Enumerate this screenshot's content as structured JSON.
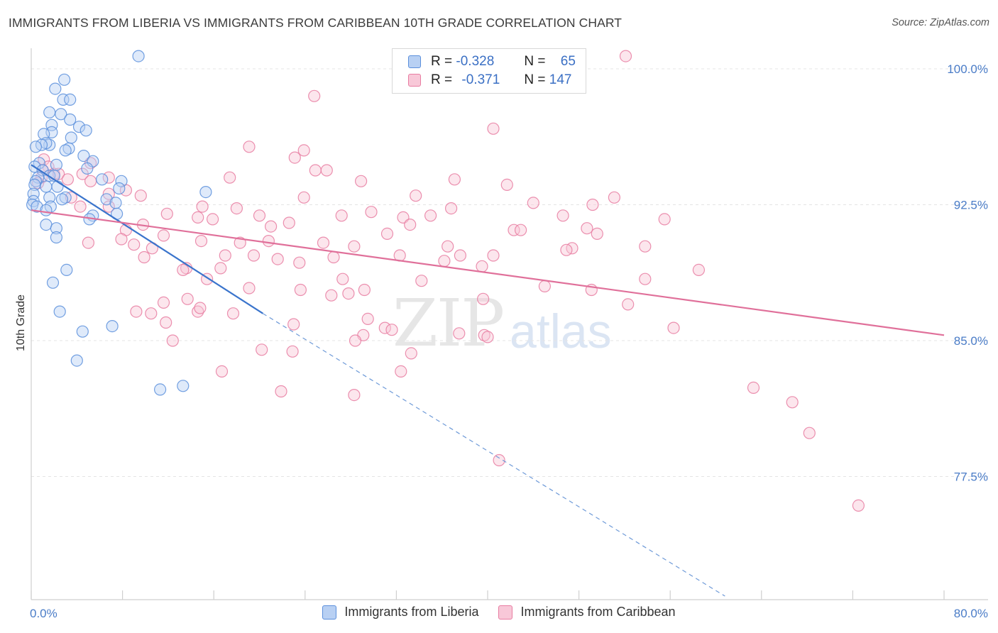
{
  "title": "IMMIGRANTS FROM LIBERIA VS IMMIGRANTS FROM CARIBBEAN 10TH GRADE CORRELATION CHART",
  "source": "Source: ZipAtlas.com",
  "watermark": {
    "zip": "ZIP",
    "atlas": "atlas"
  },
  "legend": {
    "r_label": "R =",
    "n_label": "N =",
    "rows": [
      {
        "r": "-0.328",
        "n": "65",
        "color": "#5b8fdc",
        "fill": "#b8d0f3"
      },
      {
        "r": "-0.371",
        "n": "147",
        "color": "#e87ca1",
        "fill": "#f8c8d8"
      }
    ]
  },
  "bottom_legend": [
    {
      "label": "Immigrants from Liberia",
      "color": "#5b8fdc",
      "fill": "#b8d0f3"
    },
    {
      "label": "Immigrants from Caribbean",
      "color": "#e87ca1",
      "fill": "#f8c8d8"
    }
  ],
  "chart_data": {
    "type": "scatter",
    "title": "IMMIGRANTS FROM LIBERIA VS IMMIGRANTS FROM CARIBBEAN 10TH GRADE CORRELATION CHART",
    "xlabel": "",
    "ylabel": "10th Grade",
    "xlim": [
      0,
      80
    ],
    "ylim": [
      71,
      101.5
    ],
    "x_tick_labels": [
      {
        "value": 0,
        "label": "0.0%"
      },
      {
        "value": 80,
        "label": "80.0%"
      }
    ],
    "y_tick_labels": [
      {
        "value": 100,
        "label": "100.0%"
      },
      {
        "value": 92.5,
        "label": "92.5%"
      },
      {
        "value": 85,
        "label": "85.0%"
      },
      {
        "value": 77.5,
        "label": "77.5%"
      }
    ],
    "grid": true,
    "legend_position": "top-center",
    "series": [
      {
        "name": "Immigrants from Liberia",
        "color": "#5b8fdc",
        "fill": "#b8d0f3",
        "trend": {
          "x0": 0,
          "y0": 94.7,
          "x1": 20.3,
          "y1": 86.5,
          "dashed_to_x": 60.8,
          "dashed_to_y": 70.9
        },
        "points": [
          [
            9.4,
            100.7
          ],
          [
            2.9,
            99.4
          ],
          [
            2.1,
            98.9
          ],
          [
            2.8,
            98.3
          ],
          [
            3.4,
            98.3
          ],
          [
            1.6,
            97.6
          ],
          [
            2.6,
            97.5
          ],
          [
            3.4,
            97.2
          ],
          [
            1.8,
            96.9
          ],
          [
            4.2,
            96.8
          ],
          [
            4.8,
            96.6
          ],
          [
            1.8,
            96.5
          ],
          [
            1.1,
            96.4
          ],
          [
            3.5,
            96.2
          ],
          [
            1.6,
            95.8
          ],
          [
            1.3,
            95.9
          ],
          [
            0.9,
            95.8
          ],
          [
            0.4,
            95.7
          ],
          [
            3.3,
            95.6
          ],
          [
            3.0,
            95.5
          ],
          [
            4.6,
            95.2
          ],
          [
            5.4,
            94.9
          ],
          [
            2.2,
            94.7
          ],
          [
            0.7,
            94.8
          ],
          [
            0.3,
            94.6
          ],
          [
            4.9,
            94.5
          ],
          [
            1.0,
            94.4
          ],
          [
            1.6,
            94.1
          ],
          [
            2.0,
            94.1
          ],
          [
            0.6,
            94.0
          ],
          [
            6.2,
            93.9
          ],
          [
            7.9,
            93.8
          ],
          [
            0.4,
            93.8
          ],
          [
            0.3,
            93.6
          ],
          [
            1.3,
            93.5
          ],
          [
            2.3,
            93.5
          ],
          [
            7.7,
            93.4
          ],
          [
            15.3,
            93.2
          ],
          [
            0.2,
            93.1
          ],
          [
            3.0,
            92.9
          ],
          [
            1.6,
            92.9
          ],
          [
            2.7,
            92.8
          ],
          [
            6.6,
            92.8
          ],
          [
            7.4,
            92.6
          ],
          [
            0.2,
            92.7
          ],
          [
            0.1,
            92.5
          ],
          [
            0.5,
            92.4
          ],
          [
            1.7,
            92.4
          ],
          [
            1.3,
            92.2
          ],
          [
            7.5,
            92.0
          ],
          [
            5.4,
            91.9
          ],
          [
            5.1,
            91.7
          ],
          [
            1.3,
            91.4
          ],
          [
            2.2,
            91.2
          ],
          [
            2.2,
            90.7
          ],
          [
            3.1,
            88.9
          ],
          [
            1.9,
            88.2
          ],
          [
            2.5,
            86.6
          ],
          [
            7.1,
            85.8
          ],
          [
            4.5,
            85.5
          ],
          [
            4.0,
            83.9
          ],
          [
            11.3,
            82.3
          ],
          [
            13.3,
            82.5
          ]
        ]
      },
      {
        "name": "Immigrants from Caribbean",
        "color": "#e87ca1",
        "fill": "#f8c8d8",
        "trend": {
          "x0": 0,
          "y0": 92.2,
          "x1": 80,
          "y1": 85.3
        },
        "points": [
          [
            52.1,
            100.7
          ],
          [
            24.8,
            98.5
          ],
          [
            40.5,
            96.7
          ],
          [
            19.1,
            95.7
          ],
          [
            23.9,
            95.5
          ],
          [
            23.1,
            95.1
          ],
          [
            1.1,
            95.0
          ],
          [
            5.2,
            94.8
          ],
          [
            1.5,
            94.6
          ],
          [
            1.0,
            94.4
          ],
          [
            2.0,
            94.2
          ],
          [
            2.4,
            94.2
          ],
          [
            24.9,
            94.4
          ],
          [
            25.9,
            94.4
          ],
          [
            4.5,
            94.2
          ],
          [
            0.9,
            94.0
          ],
          [
            17.4,
            94.0
          ],
          [
            6.8,
            94.0
          ],
          [
            3.2,
            93.9
          ],
          [
            37.1,
            93.9
          ],
          [
            5.2,
            93.8
          ],
          [
            0.6,
            93.7
          ],
          [
            28.9,
            93.8
          ],
          [
            41.7,
            93.6
          ],
          [
            8.3,
            93.3
          ],
          [
            6.8,
            93.1
          ],
          [
            9.6,
            93.0
          ],
          [
            33.7,
            93.0
          ],
          [
            23.9,
            92.9
          ],
          [
            51.1,
            92.9
          ],
          [
            3.5,
            92.9
          ],
          [
            44.0,
            92.6
          ],
          [
            4.3,
            92.4
          ],
          [
            6.8,
            92.4
          ],
          [
            15.0,
            92.4
          ],
          [
            29.8,
            92.1
          ],
          [
            49.2,
            92.5
          ],
          [
            36.8,
            92.3
          ],
          [
            18.0,
            92.3
          ],
          [
            20.0,
            91.9
          ],
          [
            11.9,
            92.0
          ],
          [
            14.6,
            91.8
          ],
          [
            27.2,
            91.9
          ],
          [
            32.6,
            91.8
          ],
          [
            35.0,
            91.9
          ],
          [
            55.5,
            91.7
          ],
          [
            46.6,
            91.9
          ],
          [
            15.9,
            91.7
          ],
          [
            22.6,
            91.5
          ],
          [
            9.8,
            91.4
          ],
          [
            8.3,
            91.1
          ],
          [
            21.0,
            91.3
          ],
          [
            42.3,
            91.1
          ],
          [
            42.9,
            91.1
          ],
          [
            33.2,
            91.4
          ],
          [
            48.7,
            91.2
          ],
          [
            31.2,
            90.9
          ],
          [
            49.6,
            90.9
          ],
          [
            11.6,
            90.8
          ],
          [
            7.9,
            90.6
          ],
          [
            14.9,
            90.5
          ],
          [
            18.3,
            90.4
          ],
          [
            20.8,
            90.5
          ],
          [
            25.6,
            90.4
          ],
          [
            36.5,
            90.2
          ],
          [
            53.8,
            90.2
          ],
          [
            5.0,
            90.4
          ],
          [
            9.0,
            90.3
          ],
          [
            10.6,
            90.1
          ],
          [
            28.3,
            90.2
          ],
          [
            47.4,
            90.1
          ],
          [
            46.9,
            90.0
          ],
          [
            17.0,
            89.7
          ],
          [
            19.5,
            89.7
          ],
          [
            26.5,
            89.6
          ],
          [
            32.3,
            89.7
          ],
          [
            37.6,
            89.7
          ],
          [
            40.5,
            89.7
          ],
          [
            9.9,
            89.6
          ],
          [
            21.6,
            89.5
          ],
          [
            23.5,
            89.3
          ],
          [
            36.2,
            89.4
          ],
          [
            39.5,
            89.1
          ],
          [
            13.6,
            89.0
          ],
          [
            16.6,
            89.0
          ],
          [
            58.5,
            88.9
          ],
          [
            13.3,
            88.9
          ],
          [
            27.3,
            88.4
          ],
          [
            15.4,
            88.4
          ],
          [
            34.2,
            88.3
          ],
          [
            53.8,
            88.4
          ],
          [
            45.0,
            88.0
          ],
          [
            49.1,
            87.8
          ],
          [
            19.1,
            87.9
          ],
          [
            23.6,
            87.8
          ],
          [
            29.2,
            87.8
          ],
          [
            27.8,
            87.6
          ],
          [
            26.3,
            87.5
          ],
          [
            13.7,
            87.3
          ],
          [
            39.6,
            87.3
          ],
          [
            11.6,
            87.1
          ],
          [
            52.3,
            87.0
          ],
          [
            14.6,
            86.6
          ],
          [
            10.5,
            86.5
          ],
          [
            9.2,
            86.6
          ],
          [
            14.8,
            86.8
          ],
          [
            17.7,
            86.5
          ],
          [
            29.5,
            86.2
          ],
          [
            11.8,
            86.0
          ],
          [
            23.0,
            85.9
          ],
          [
            56.3,
            85.7
          ],
          [
            31.0,
            85.7
          ],
          [
            31.6,
            85.6
          ],
          [
            37.5,
            85.4
          ],
          [
            39.7,
            85.3
          ],
          [
            29.1,
            85.3
          ],
          [
            40.0,
            85.2
          ],
          [
            28.4,
            85.0
          ],
          [
            12.4,
            85.0
          ],
          [
            20.2,
            84.5
          ],
          [
            22.9,
            84.4
          ],
          [
            33.3,
            84.3
          ],
          [
            16.7,
            83.3
          ],
          [
            32.4,
            83.3
          ],
          [
            21.9,
            82.2
          ],
          [
            63.3,
            82.4
          ],
          [
            66.7,
            81.6
          ],
          [
            28.3,
            82.0
          ],
          [
            68.2,
            79.9
          ],
          [
            41.0,
            78.4
          ],
          [
            72.5,
            75.9
          ]
        ]
      }
    ]
  }
}
